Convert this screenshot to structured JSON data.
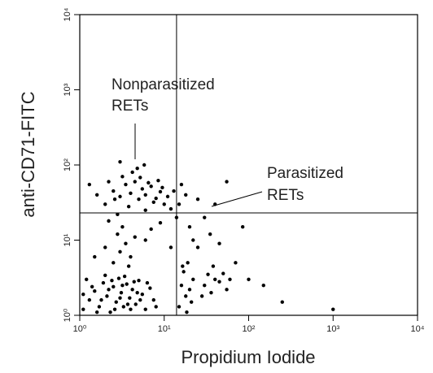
{
  "chart_data": {
    "type": "scatter",
    "x_label": "Propidium Iodide",
    "y_label": "anti-CD71-FITC",
    "log_x": true,
    "log_y": true,
    "color": "#000000",
    "xlim": [
      1,
      10000
    ],
    "ylim": [
      1,
      10000
    ],
    "xticks": [
      {
        "value": 1,
        "label": "10⁰"
      },
      {
        "value": 10,
        "label": "10¹"
      },
      {
        "value": 100,
        "label": "10²"
      },
      {
        "value": 1000,
        "label": "10³"
      },
      {
        "value": 10000,
        "label": "10⁴"
      }
    ],
    "yticks": [
      {
        "value": 1,
        "label": "10⁰"
      },
      {
        "value": 10,
        "label": "10¹"
      },
      {
        "value": 100,
        "label": "10²"
      },
      {
        "value": 1000,
        "label": "10³"
      },
      {
        "value": 10000,
        "label": "10⁴"
      }
    ],
    "gates": {
      "x": 14,
      "y": 23
    },
    "annotations": [
      {
        "lines": [
          "Nonparasitized",
          "RETs"
        ]
      },
      {
        "lines": [
          "Parasitized",
          "RETs"
        ]
      }
    ],
    "x": [
      1.1,
      1.3,
      1.5,
      1.7,
      1.9,
      2.1,
      2.3,
      2.5,
      2.7,
      2.9,
      3.1,
      3.3,
      3.6,
      3.9,
      4.2,
      4.6,
      5,
      5.5,
      6,
      6.8,
      7.5,
      1.2,
      1.4,
      1.6,
      2,
      2.2,
      2.6,
      3,
      3.4,
      4,
      4.4,
      5.2,
      1.1,
      1.8,
      2.4,
      3.2,
      3.7,
      4.8,
      6.3,
      8,
      2.5,
      3,
      3.5,
      2.8,
      4,
      3.2,
      2.2,
      4.5,
      3.8,
      2,
      6,
      7,
      1.5,
      9,
      2,
      2.5,
      3,
      3.5,
      4,
      4.5,
      5,
      5.5,
      6,
      7,
      8,
      9,
      10,
      11,
      12,
      2.2,
      3.2,
      4.2,
      5.2,
      6.5,
      7.5,
      8.5,
      3.8,
      2.8,
      6,
      4.8,
      9.5,
      1.6,
      1.3,
      5.8,
      3,
      2.6,
      13,
      15,
      16,
      17,
      18,
      19,
      20,
      21,
      22,
      16.5,
      18.5,
      30,
      33,
      36,
      40,
      45,
      50,
      38,
      28,
      60,
      55,
      25,
      35,
      20,
      30,
      45,
      70,
      100,
      150,
      250,
      1000,
      15,
      18,
      25,
      55,
      22,
      16,
      85,
      12,
      14,
      40
    ],
    "values": [
      1.2,
      1.6,
      2.1,
      1.3,
      2.7,
      1.8,
      1.1,
      2.4,
      1.5,
      3.1,
      2,
      1.3,
      2.6,
      1.7,
      2.2,
      1.4,
      2.9,
      1.9,
      1.2,
      2.3,
      1.6,
      3,
      2.4,
      1.1,
      3.4,
      2.2,
      1.2,
      1.7,
      3.3,
      1.2,
      2.8,
      1.6,
      1.9,
      1.6,
      2.9,
      2.5,
      1.4,
      2,
      2.7,
      1.3,
      5,
      7,
      9,
      12,
      6,
      15,
      18,
      11,
      4.5,
      8,
      10,
      14,
      6,
      17,
      30,
      45,
      38,
      55,
      42,
      60,
      35,
      48,
      40,
      52,
      36,
      44,
      30,
      38,
      26,
      60,
      70,
      80,
      68,
      58,
      32,
      62,
      28,
      22,
      25,
      90,
      50,
      40,
      55,
      100,
      110,
      35,
      45,
      1.3,
      2.5,
      3.8,
      1.8,
      5,
      2.2,
      1.5,
      3,
      4.5,
      1.1,
      2.5,
      3.5,
      2,
      3,
      2.8,
      3.6,
      4.5,
      1.8,
      3,
      2.2,
      8,
      12,
      15,
      20,
      9,
      5,
      3,
      2.5,
      1.5,
      1.2,
      30,
      40,
      35,
      60,
      10,
      55,
      15,
      8,
      20,
      30
    ]
  }
}
